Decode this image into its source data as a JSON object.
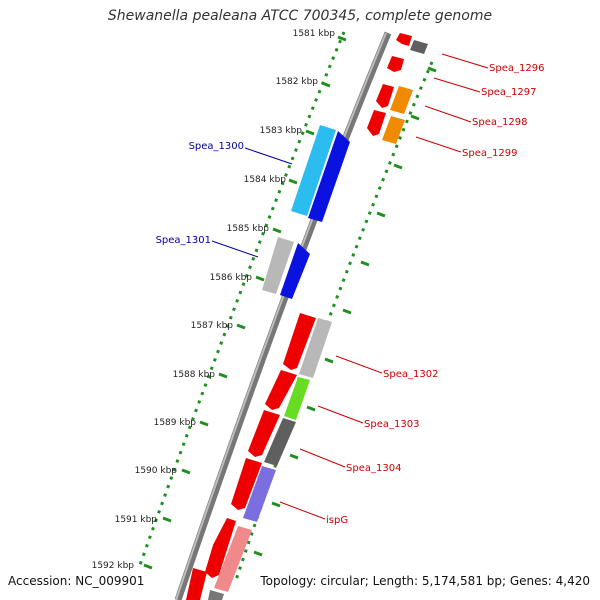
{
  "title": "Shewanella pealeana ATCC 700345, complete genome",
  "footer": {
    "accession": "Accession: NC_009901",
    "summary": "Topology: circular; Length: 5,174,581 bp; Genes: 4,420"
  },
  "colors": {
    "backbone": "#7a7a7a",
    "tick_green": "#1f8f1f",
    "forward_red": "#ee0000",
    "blue_gene": "#0a12e0",
    "cyan_gene": "#2bbcf0",
    "gray_gene": "#b8b8b8",
    "dark_gray_gene": "#5f5f5f",
    "orange_gene": "#f08a00",
    "green_gene": "#66dd22",
    "purple_gene": "#7b6fe0",
    "pink_gene": "#f08a8a",
    "label_red": "#cc0000",
    "label_blue": "#000099"
  },
  "kbp_labels": [
    "1581 kbp",
    "1582 kbp",
    "1583 kbp",
    "1584 kbp",
    "1585 kbp",
    "1586 kbp",
    "1587 kbp",
    "1588 kbp",
    "1589 kbp",
    "1590 kbp",
    "1591 kbp",
    "1592 kbp"
  ],
  "gene_labels": {
    "right": [
      "Spea_1296",
      "Spea_1297",
      "Spea_1298",
      "Spea_1299",
      "Spea_1302",
      "Spea_1303",
      "Spea_1304",
      "ispG"
    ],
    "left": [
      "Spea_1300",
      "Spea_1301"
    ]
  }
}
